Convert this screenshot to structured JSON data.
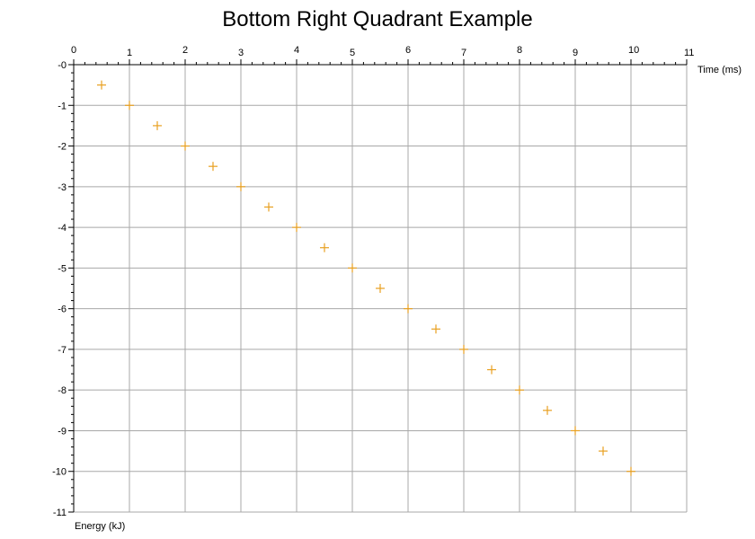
{
  "chart_data": {
    "type": "scatter",
    "title": "Bottom Right Quadrant Example",
    "xlabel": "Time (ms)",
    "ylabel": "Energy (kJ)",
    "xlim": [
      0,
      11
    ],
    "ylim": [
      -11,
      0
    ],
    "x_axis_position": "top",
    "grid": true,
    "xticks": [
      "0",
      "1",
      "2",
      "3",
      "4",
      "5",
      "6",
      "7",
      "8",
      "9",
      "10",
      "11"
    ],
    "yticks": [
      "-0",
      "-1",
      "-2",
      "-3",
      "-4",
      "-5",
      "-6",
      "-7",
      "-8",
      "-9",
      "-10",
      "-11"
    ],
    "marker": "cross",
    "color": "#e8a020",
    "series": [
      {
        "x": [
          0.5,
          1,
          1.5,
          2,
          2.5,
          3,
          3.5,
          4,
          4.5,
          5,
          5.5,
          6,
          6.5,
          7,
          7.5,
          8,
          8.5,
          9,
          9.5,
          10
        ],
        "y": [
          -0.5,
          -1,
          -1.5,
          -2,
          -2.5,
          -3,
          -3.5,
          -4,
          -4.5,
          -5,
          -5.5,
          -6,
          -6.5,
          -7,
          -7.5,
          -8,
          -8.5,
          -9,
          -9.5,
          -10
        ]
      }
    ]
  }
}
